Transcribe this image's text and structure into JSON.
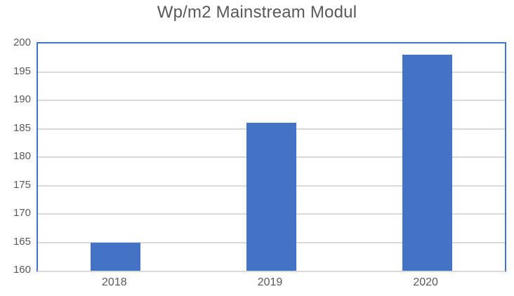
{
  "chart_data": {
    "type": "bar",
    "title": "Wp/m2 Mainstream Modul",
    "categories": [
      "2018",
      "2019",
      "2020"
    ],
    "values": [
      165,
      186,
      198
    ],
    "xlabel": "",
    "ylabel": "",
    "ylim": [
      160,
      200
    ],
    "ytick_step": 5,
    "yticks": [
      160,
      165,
      170,
      175,
      180,
      185,
      190,
      195,
      200
    ],
    "grid": true,
    "legend": false,
    "colors": {
      "bar": "#4472C4",
      "plot_border": "#4472C4",
      "gridline": "#D9D9D9",
      "axis_line": "#D9D9D9",
      "text": "#595959",
      "background": "#FFFFFF"
    }
  }
}
